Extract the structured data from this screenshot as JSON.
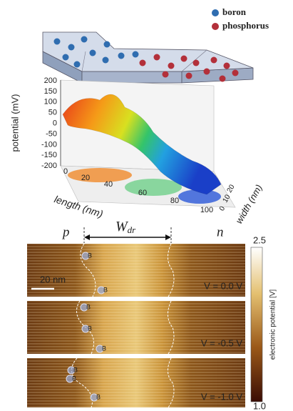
{
  "legend": [
    {
      "label": "boron",
      "color": "#2f6db0"
    },
    {
      "label": "phosphorus",
      "color": "#b3303a"
    }
  ],
  "plot3d": {
    "z_label": "potential (mV)",
    "z_ticks": [
      "200",
      "150",
      "100",
      "50",
      "0",
      "-50",
      "-100",
      "-150",
      "-200"
    ],
    "x_label": "length (nm)",
    "x_ticks": [
      "0",
      "20",
      "40",
      "60",
      "80",
      "100"
    ],
    "y_label": "width (nm)",
    "y_ticks": [
      "0",
      "10",
      "20"
    ]
  },
  "kpfm": {
    "p_label": "p",
    "n_label": "n",
    "width_symbol": "W",
    "width_subscript": "dr",
    "scale_bar": "20 nm",
    "panels": [
      {
        "voltage": "V = 0.0 V",
        "markers": [
          "B",
          "B"
        ]
      },
      {
        "voltage": "V = -0.5 V",
        "markers": [
          "B",
          "B",
          "B"
        ]
      },
      {
        "voltage": "V = -1.0 V",
        "markers": [
          "B",
          "B",
          "B"
        ]
      }
    ],
    "colorbar": {
      "max": "2.5",
      "min": "1.0",
      "label": "electronic potential [V]"
    }
  }
}
